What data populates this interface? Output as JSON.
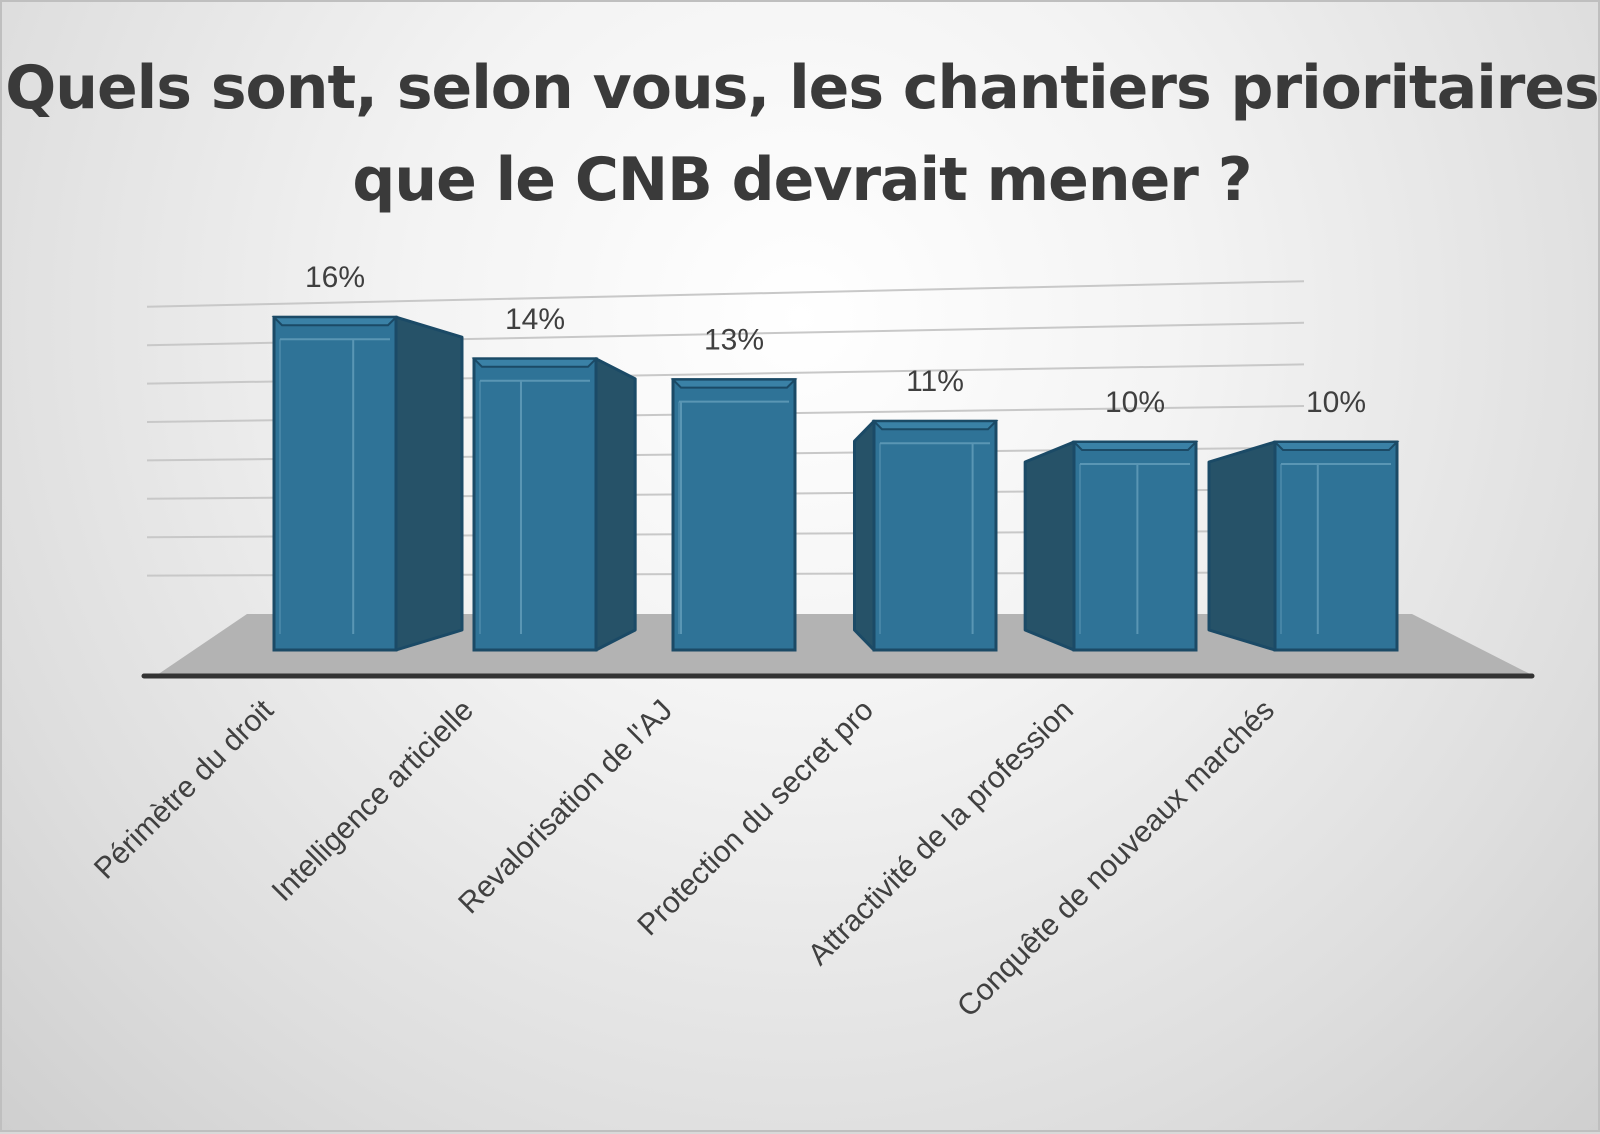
{
  "chart_data": {
    "type": "bar",
    "style": "3d-column",
    "title": "Quels sont, selon vous, les chantiers prioritaires que le CNB devrait mener ?",
    "categories": [
      "Périmètre du droit",
      "Intelligence articielle",
      "Revalorisation de l'AJ",
      "Protection du secret pro",
      "Attractivité de la profession",
      "Conquête de nouveaux marchés"
    ],
    "values": [
      16,
      14,
      13,
      11,
      10,
      10
    ],
    "value_labels": [
      "16%",
      "14%",
      "13%",
      "11%",
      "10%",
      "10%"
    ],
    "unit": "%",
    "ylim": [
      0,
      16
    ],
    "grid": true,
    "legend": "none",
    "xlabel": "",
    "ylabel": ""
  },
  "colors": {
    "bar_front": "#2f7397",
    "bar_side": "#265268",
    "bar_edge": "#1b4a66",
    "floor": "#b3b3b3",
    "baseline": "#333333",
    "gridline": "#c8c8c8",
    "title": "#3a3a3a",
    "text": "#404040"
  }
}
